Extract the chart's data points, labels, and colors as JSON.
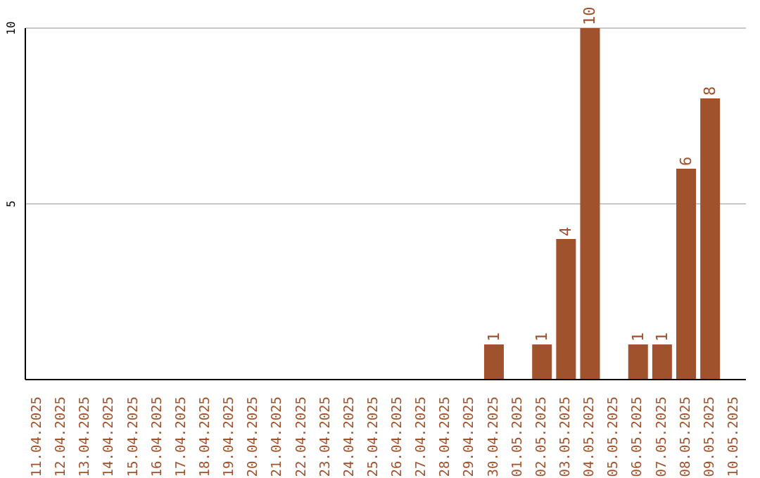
{
  "chart_data": {
    "type": "bar",
    "categories": [
      "11.04.2025",
      "12.04.2025",
      "13.04.2025",
      "14.04.2025",
      "15.04.2025",
      "16.04.2025",
      "17.04.2025",
      "18.04.2025",
      "19.04.2025",
      "20.04.2025",
      "21.04.2025",
      "22.04.2025",
      "23.04.2025",
      "24.04.2025",
      "25.04.2025",
      "26.04.2025",
      "27.04.2025",
      "28.04.2025",
      "29.04.2025",
      "30.04.2025",
      "01.05.2025",
      "02.05.2025",
      "03.05.2025",
      "04.05.2025",
      "05.05.2025",
      "06.05.2025",
      "07.05.2025",
      "08.05.2025",
      "09.05.2025",
      "10.05.2025"
    ],
    "values": [
      0,
      0,
      0,
      0,
      0,
      0,
      0,
      0,
      0,
      0,
      0,
      0,
      0,
      0,
      0,
      0,
      0,
      0,
      0,
      1,
      0,
      1,
      4,
      10,
      0,
      1,
      1,
      6,
      8,
      0
    ],
    "value_labels": [
      null,
      null,
      null,
      null,
      null,
      null,
      null,
      null,
      null,
      null,
      null,
      null,
      null,
      null,
      null,
      null,
      null,
      null,
      null,
      "1",
      null,
      "1",
      "4",
      "10",
      null,
      "1",
      "1",
      "6",
      "8",
      null
    ],
    "color": "#a0522d",
    "ylim": [
      0,
      10
    ],
    "yticks": [
      5,
      10
    ],
    "grid": "y"
  }
}
